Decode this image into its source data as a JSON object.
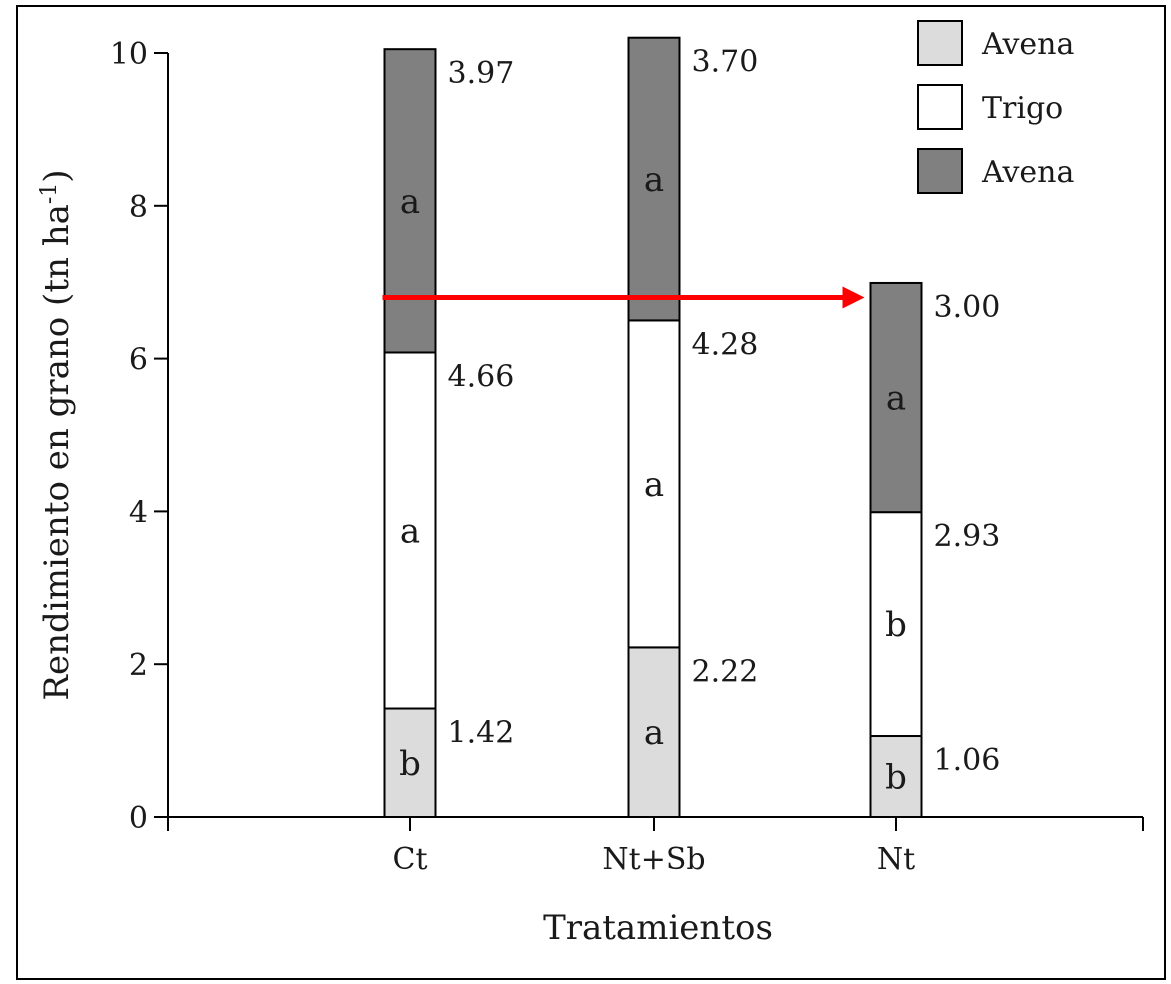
{
  "chart_data": {
    "type": "bar",
    "stacked": true,
    "categories": [
      "Ct",
      "Nt+Sb",
      "Nt"
    ],
    "series": [
      {
        "name": "Avena",
        "color": "#dcdcdc",
        "values": [
          1.42,
          2.22,
          1.06
        ],
        "value_labels": [
          "1.42",
          "2.22",
          "1.06"
        ],
        "letters": [
          "b",
          "a",
          "b"
        ]
      },
      {
        "name": "Trigo",
        "color": "#ffffff",
        "values": [
          4.66,
          4.28,
          2.93
        ],
        "value_labels": [
          "4.66",
          "4.28",
          "2.93"
        ],
        "letters": [
          "a",
          "a",
          "b"
        ]
      },
      {
        "name": "Avena",
        "color": "#808080",
        "values": [
          3.97,
          3.7,
          3.0
        ],
        "value_labels": [
          "3.97",
          "3.70",
          "3.00"
        ],
        "letters": [
          "a",
          "a",
          "a"
        ]
      }
    ],
    "xlabel": "Tratamientos",
    "ylabel": "Rendimiento en grano (tn ha",
    "ylabel_superscript": "-1",
    "ylabel_suffix": ")",
    "ylim": [
      0,
      10
    ],
    "yticks": [
      0,
      2,
      4,
      6,
      8,
      10
    ],
    "grid": false,
    "legend_position": "top-right",
    "arrow": {
      "color": "#ff0000",
      "from_category": "Ct",
      "to_category": "Nt",
      "y": 6.8
    }
  }
}
